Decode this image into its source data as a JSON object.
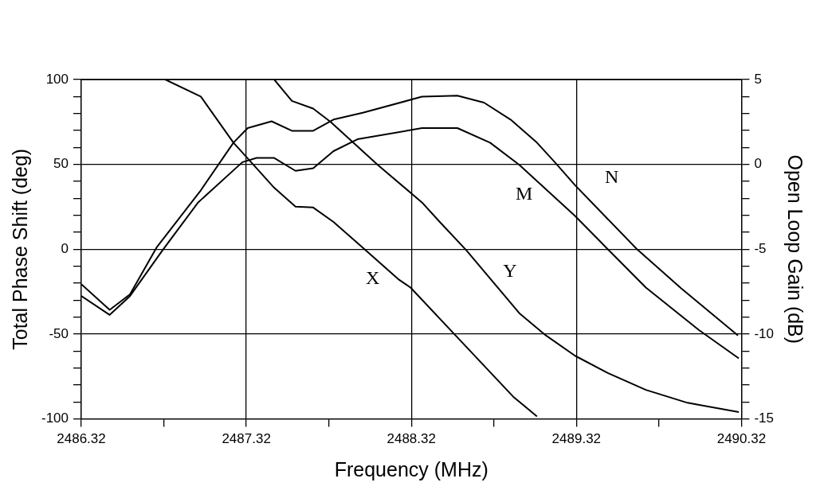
{
  "chart_data": {
    "type": "line",
    "xlabel": "Frequency (MHz)",
    "ylabel": "Total Phase Shift (deg)",
    "y2label": "Open Loop Gain (dB)",
    "xlim": [
      2486.32,
      2490.32
    ],
    "xticks": [
      2486.32,
      {
        "value": 2486.82,
        "label": null
      },
      2487.32,
      {
        "value": 2487.82,
        "label": null
      },
      2488.32,
      {
        "value": 2488.82,
        "label": null
      },
      2489.32,
      {
        "value": 2489.82,
        "label": null
      },
      2490.32
    ],
    "ylim": [
      -100,
      100
    ],
    "yticks": [
      -100,
      {
        "value": -90,
        "label": null
      },
      {
        "value": -80,
        "label": null
      },
      {
        "value": -70,
        "label": null
      },
      {
        "value": -60,
        "label": null
      },
      -50,
      {
        "value": -40,
        "label": null
      },
      {
        "value": -30,
        "label": null
      },
      {
        "value": -20,
        "label": null
      },
      {
        "value": -10,
        "label": null
      },
      0,
      {
        "value": 10,
        "label": null
      },
      {
        "value": 20,
        "label": null
      },
      {
        "value": 30,
        "label": null
      },
      {
        "value": 40,
        "label": null
      },
      50,
      {
        "value": 60,
        "label": null
      },
      {
        "value": 70,
        "label": null
      },
      {
        "value": 80,
        "label": null
      },
      {
        "value": 90,
        "label": null
      },
      100
    ],
    "y2lim": [
      -15,
      5
    ],
    "y2ticks": [
      -15,
      {
        "value": -14,
        "label": null
      },
      {
        "value": -13,
        "label": null
      },
      {
        "value": -12,
        "label": null
      },
      {
        "value": -11,
        "label": null
      },
      -10,
      {
        "value": -9,
        "label": null
      },
      {
        "value": -8,
        "label": null
      },
      {
        "value": -7,
        "label": null
      },
      {
        "value": -6,
        "label": null
      },
      -5,
      {
        "value": -4,
        "label": null
      },
      {
        "value": -3,
        "label": null
      },
      {
        "value": -2,
        "label": null
      },
      {
        "value": -1,
        "label": null
      },
      0,
      {
        "value": 1,
        "label": null
      },
      {
        "value": 2,
        "label": null
      },
      {
        "value": 3,
        "label": null
      },
      {
        "value": 4,
        "label": null
      },
      5
    ],
    "grid": true,
    "legend": false,
    "marker": "none",
    "line_style": "solid",
    "series": [
      {
        "name": "X",
        "color": "#000000",
        "x": [
          2486.829,
          2487.044,
          2487.242,
          2487.349,
          2487.489,
          2487.618,
          2487.725,
          2487.848,
          2488.025,
          2488.24,
          2488.315,
          2488.583,
          2488.937,
          2489.081
        ],
        "values": [
          100,
          90,
          62.8,
          51.3,
          36.2,
          25.1,
          24.6,
          16.1,
          1,
          -17.6,
          -22.6,
          -50.3,
          -86.9,
          -98.5
        ]
      },
      {
        "name": "Y",
        "color": "#000000",
        "x": [
          2487.489,
          2487.596,
          2487.725,
          2487.832,
          2488.116,
          2488.384,
          2488.492,
          2488.652,
          2488.974,
          2489.135,
          2489.312,
          2489.51,
          2489.741,
          2489.993,
          2490.304
        ],
        "values": [
          100,
          87.4,
          82.9,
          74.9,
          49.7,
          27.6,
          16.1,
          -0.5,
          -37.7,
          -50.8,
          -62.8,
          -72.9,
          -82.9,
          -90.5,
          -96
        ]
      },
      {
        "name": "M",
        "color": "#000000",
        "axis": "y2",
        "x": [
          2486.32,
          2486.492,
          2486.615,
          2486.813,
          2487.028,
          2487.296,
          2487.382,
          2487.489,
          2487.618,
          2487.725,
          2487.848,
          2487.993,
          2488.384,
          2488.599,
          2488.797,
          2488.974,
          2489.312,
          2489.51,
          2489.741,
          2490.063,
          2490.304
        ],
        "values": [
          -7.76,
          -8.87,
          -7.76,
          -5.05,
          -2.24,
          0.13,
          0.38,
          0.38,
          -0.38,
          -0.23,
          0.78,
          1.48,
          2.14,
          2.14,
          1.28,
          -0.03,
          -3.04,
          -5,
          -7.26,
          -9.77,
          -11.43
        ]
      },
      {
        "name": "N",
        "color": "#000000",
        "axis": "y2",
        "x": [
          2486.32,
          2486.492,
          2486.615,
          2486.776,
          2487.044,
          2487.242,
          2487.328,
          2487.473,
          2487.596,
          2487.725,
          2487.848,
          2488.025,
          2488.384,
          2488.599,
          2488.76,
          2488.921,
          2489.081,
          2489.189,
          2489.312,
          2489.687,
          2489.955,
          2490.299
        ],
        "values": [
          -7.06,
          -8.57,
          -7.66,
          -4.9,
          -1.53,
          1.28,
          2.14,
          2.54,
          1.98,
          1.98,
          2.64,
          3.04,
          3.99,
          4.05,
          3.64,
          2.64,
          1.28,
          0.13,
          -1.23,
          -5,
          -7.31,
          -10.08
        ]
      }
    ]
  }
}
